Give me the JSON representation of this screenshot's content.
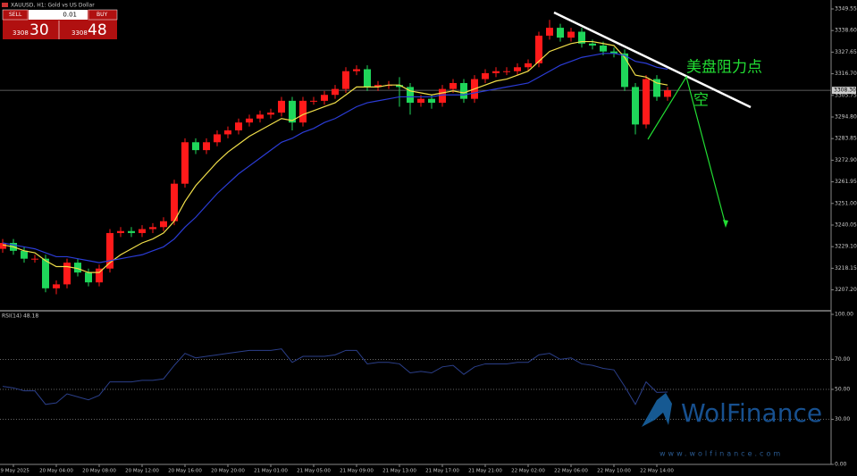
{
  "chart_data": {
    "type": "candlestick",
    "title": "XAUUSD, H1: Gold vs US Dollar",
    "trade_panel": {
      "sell": "SELL",
      "buy": "BUY",
      "lot": "0.01",
      "sell_big": "3308",
      "sell_small": "30",
      "buy_big": "3308",
      "buy_small": "48"
    },
    "annotations": [
      "美盘阻力点",
      "空"
    ],
    "watermark": [
      "WolFinance",
      "www.wolfinance.com"
    ],
    "categories": [
      null,
      "19 May 2025",
      null,
      null,
      null,
      "20 May 04:00",
      null,
      null,
      null,
      "20 May 08:00",
      null,
      null,
      null,
      "20 May 12:00",
      null,
      null,
      null,
      "20 May 16:00",
      null,
      null,
      null,
      "20 May 20:00",
      null,
      null,
      null,
      "21 May 01:00",
      null,
      null,
      null,
      "21 May 05:00",
      null,
      null,
      null,
      "21 May 09:00",
      null,
      null,
      null,
      "21 May 13:00",
      null,
      null,
      null,
      "21 May 17:00",
      null,
      null,
      null,
      "21 May 21:00",
      null,
      null,
      null,
      "22 May 02:00",
      null,
      null,
      null,
      "22 May 06:00",
      null,
      null,
      null,
      "22 May 10:00",
      null,
      null,
      null,
      "22 May 14:00",
      null
    ],
    "open": [
      3228,
      3231,
      3227,
      3223,
      3223,
      3208,
      3210,
      3221,
      3216,
      3211,
      3218,
      3236,
      3237,
      3236,
      3238,
      3239,
      3242,
      3261,
      3282,
      3278,
      3282,
      3286,
      3288,
      3292,
      3294,
      3296,
      3297,
      3303,
      3292,
      3303,
      3303,
      3306,
      3309,
      3318,
      3319,
      3310,
      3311,
      3311,
      3310,
      3302,
      3304,
      3302,
      3309,
      3312,
      3304,
      3314,
      3317,
      3318,
      3318,
      3320,
      3322,
      3336,
      3340,
      3335,
      3338,
      3332,
      3331,
      3328,
      3327,
      3310,
      3291,
      3314,
      3305
    ],
    "high": [
      3233,
      3233,
      3229,
      3225,
      3225,
      3212,
      3223,
      3223,
      3218,
      3220,
      3238,
      3239,
      3239,
      3240,
      3241,
      3244,
      3263,
      3284,
      3284,
      3284,
      3288,
      3290,
      3294,
      3296,
      3298,
      3299,
      3305,
      3305,
      3305,
      3305,
      3308,
      3311,
      3320,
      3321,
      3321,
      3313,
      3313,
      3315,
      3312,
      3306,
      3306,
      3311,
      3314,
      3314,
      3316,
      3319,
      3320,
      3320,
      3322,
      3324,
      3338,
      3344,
      3342,
      3340,
      3340,
      3334,
      3333,
      3330,
      3329,
      3312,
      3316,
      3316,
      3310
    ],
    "low": [
      3226,
      3225,
      3221,
      3221,
      3206,
      3205,
      3208,
      3214,
      3209,
      3209,
      3216,
      3234,
      3234,
      3234,
      3236,
      3237,
      3240,
      3259,
      3276,
      3276,
      3280,
      3284,
      3286,
      3290,
      3292,
      3294,
      3295,
      3288,
      3290,
      3301,
      3301,
      3304,
      3307,
      3316,
      3308,
      3308,
      3309,
      3300,
      3296,
      3300,
      3299,
      3300,
      3307,
      3302,
      3302,
      3312,
      3315,
      3316,
      3316,
      3318,
      3320,
      3334,
      3333,
      3333,
      3330,
      3329,
      3326,
      3325,
      3308,
      3286,
      3289,
      3303,
      3303
    ],
    "close": [
      3231,
      3227,
      3223,
      3223,
      3208,
      3210,
      3221,
      3216,
      3211,
      3218,
      3236,
      3237,
      3236,
      3238,
      3239,
      3242,
      3261,
      3282,
      3278,
      3282,
      3286,
      3288,
      3292,
      3294,
      3296,
      3297,
      3303,
      3292,
      3303,
      3303,
      3306,
      3309,
      3318,
      3319,
      3310,
      3311,
      3311,
      3310,
      3302,
      3304,
      3302,
      3309,
      3312,
      3304,
      3314,
      3317,
      3318,
      3318,
      3320,
      3322,
      3336,
      3340,
      3335,
      3338,
      3332,
      3331,
      3328,
      3327,
      3310,
      3291,
      3314,
      3305,
      3308.3
    ],
    "up_color": "#ff1a1a",
    "down_color": "#1fd65a",
    "series": [
      {
        "color": "#f2e04a",
        "values": [
          3230,
          3229,
          3227,
          3226,
          3222,
          3219,
          3219,
          3218,
          3216,
          3216,
          3221,
          3225,
          3228,
          3231,
          3233,
          3236,
          3242,
          3252,
          3260,
          3266,
          3272,
          3277,
          3281,
          3285,
          3288,
          3291,
          3294,
          3293,
          3296,
          3298,
          3300,
          3302,
          3306,
          3310,
          3310,
          3310,
          3311,
          3311,
          3308,
          3307,
          3306,
          3307,
          3308,
          3307,
          3309,
          3311,
          3313,
          3314,
          3316,
          3318,
          3323,
          3328,
          3330,
          3332,
          3333,
          3333,
          3332,
          3331,
          3325,
          3316,
          3315,
          3312,
          3311
        ]
      },
      {
        "color": "#2b3cd6",
        "values": [
          3231,
          3230,
          3229,
          3228,
          3226,
          3224,
          3224,
          3223,
          3222,
          3221,
          3222,
          3223,
          3224,
          3225,
          3227,
          3229,
          3233,
          3239,
          3244,
          3250,
          3256,
          3261,
          3266,
          3270,
          3274,
          3278,
          3282,
          3284,
          3287,
          3289,
          3292,
          3294,
          3297,
          3300,
          3302,
          3303,
          3304,
          3305,
          3305,
          3305,
          3305,
          3306,
          3306,
          3306,
          3307,
          3308,
          3309,
          3310,
          3311,
          3312,
          3315,
          3318,
          3321,
          3323,
          3325,
          3326,
          3327,
          3327,
          3326,
          3323,
          3322,
          3320,
          3319
        ]
      }
    ],
    "current_price": {
      "value": 3308.3,
      "label": "3308.30"
    },
    "ylim": [
      3197.06,
      3354.07
    ],
    "yticks": [
      3349.55,
      {
        "value": 3338.6,
        "label": "3338.60"
      },
      3327.65,
      {
        "value": 3316.7,
        "label": "3316.70"
      },
      3305.75,
      {
        "value": 3294.8,
        "label": "3294.80"
      },
      3283.85,
      {
        "value": 3272.9,
        "label": "3272.90"
      },
      3261.95,
      {
        "value": 3251,
        "label": "3251.00"
      },
      3240.05,
      {
        "value": 3229.1,
        "label": "3229.10"
      },
      3218.15,
      {
        "value": 3207.2,
        "label": "3207.20"
      }
    ],
    "rsi": {
      "label": "RSI(14) 48.18",
      "color": "#2b3f8a",
      "values": [
        52,
        51,
        49,
        49,
        40,
        41,
        47,
        45,
        43,
        46,
        55,
        55,
        55,
        56,
        56,
        57,
        66,
        74,
        71,
        72,
        73,
        74,
        75,
        76,
        76,
        76,
        77,
        68,
        72,
        72,
        72,
        73,
        76,
        76,
        67,
        68,
        68,
        67,
        61,
        62,
        61,
        65,
        66,
        60,
        65,
        67,
        67,
        67,
        68,
        68,
        73,
        74,
        70,
        71,
        67,
        66,
        64,
        63,
        52,
        40,
        55,
        48,
        48.18
      ],
      "ylim": [
        0,
        100
      ],
      "yticks": [
        {
          "value": 100,
          "label": "100.00"
        },
        {
          "value": 70,
          "label": "70.00"
        },
        {
          "value": 50,
          "label": "50.00"
        },
        {
          "value": 30,
          "label": "30.00"
        },
        {
          "value": 0,
          "label": "0.00"
        }
      ],
      "levels": [
        70,
        50,
        30
      ]
    }
  }
}
